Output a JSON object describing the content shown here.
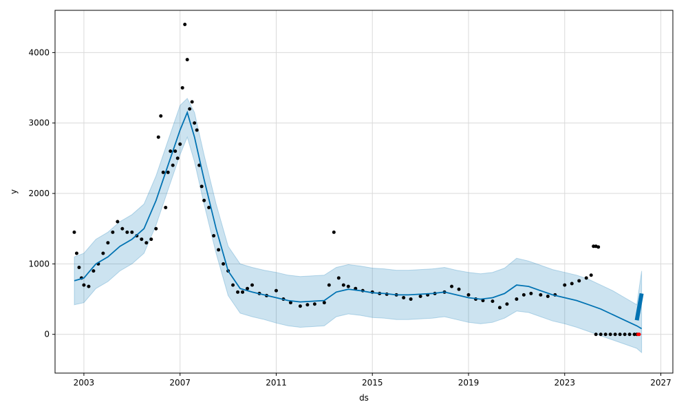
{
  "chart_data": {
    "type": "line",
    "title": "",
    "xlabel": "ds",
    "ylabel": "y",
    "xlim": [
      2001.8,
      2027.5
    ],
    "ylim": [
      -550,
      4600
    ],
    "x_ticks": [
      2003,
      2007,
      2011,
      2015,
      2019,
      2023,
      2027
    ],
    "x_tick_labels": [
      "2003",
      "2007",
      "2011",
      "2015",
      "2019",
      "2023",
      "2027"
    ],
    "y_ticks": [
      0,
      1000,
      2000,
      3000,
      4000
    ],
    "y_tick_labels": [
      "0",
      "1000",
      "2000",
      "3000",
      "4000"
    ],
    "grid": true,
    "legend": "none",
    "colors": {
      "observed": "#000000",
      "forecast": "#0072B2",
      "interval": "#0072B2",
      "highlight": "#ff0000",
      "grid": "#d9d9d9"
    },
    "series": [
      {
        "role": "forecast",
        "x": [
          2002.6,
          2003.0,
          2003.5,
          2004.0,
          2004.5,
          2005.0,
          2005.5,
          2006.0,
          2006.5,
          2007.0,
          2007.3,
          2007.6,
          2008.0,
          2008.5,
          2009.0,
          2009.5,
          2010.0,
          2010.5,
          2011.0,
          2011.5,
          2012.0,
          2012.5,
          2013.0,
          2013.5,
          2014.0,
          2014.5,
          2015.0,
          2015.5,
          2016.0,
          2016.5,
          2017.0,
          2017.5,
          2018.0,
          2018.5,
          2019.0,
          2019.5,
          2020.0,
          2020.5,
          2021.0,
          2021.5,
          2022.0,
          2022.5,
          2023.0,
          2023.5,
          2024.0,
          2024.5,
          2025.0,
          2025.5,
          2026.0,
          2026.2
        ],
        "y": [
          760,
          800,
          1000,
          1100,
          1250,
          1350,
          1500,
          1900,
          2400,
          2900,
          3150,
          2800,
          2200,
          1500,
          900,
          650,
          600,
          560,
          520,
          480,
          460,
          470,
          480,
          600,
          640,
          620,
          590,
          580,
          560,
          560,
          570,
          580,
          600,
          560,
          520,
          500,
          520,
          580,
          700,
          680,
          620,
          560,
          520,
          480,
          420,
          360,
          280,
          200,
          120,
          80
        ]
      },
      {
        "role": "interval_upper",
        "x": [
          2002.6,
          2003.0,
          2003.5,
          2004.0,
          2004.5,
          2005.0,
          2005.5,
          2006.0,
          2006.5,
          2007.0,
          2007.3,
          2007.6,
          2008.0,
          2008.5,
          2009.0,
          2009.5,
          2010.0,
          2010.5,
          2011.0,
          2011.5,
          2012.0,
          2012.5,
          2013.0,
          2013.5,
          2014.0,
          2014.5,
          2015.0,
          2015.5,
          2016.0,
          2016.5,
          2017.0,
          2017.5,
          2018.0,
          2018.5,
          2019.0,
          2019.5,
          2020.0,
          2020.5,
          2021.0,
          2021.5,
          2022.0,
          2022.5,
          2023.0,
          2023.5,
          2024.0,
          2024.5,
          2025.0,
          2025.5,
          2026.0,
          2026.2
        ],
        "y": [
          1100,
          1150,
          1350,
          1450,
          1600,
          1700,
          1850,
          2250,
          2750,
          3250,
          3350,
          3150,
          2550,
          1850,
          1250,
          1000,
          950,
          910,
          880,
          840,
          820,
          830,
          840,
          950,
          990,
          970,
          940,
          930,
          910,
          910,
          920,
          930,
          950,
          910,
          880,
          860,
          880,
          940,
          1080,
          1040,
          980,
          920,
          880,
          840,
          780,
          700,
          620,
          520,
          420,
          900
        ]
      },
      {
        "role": "interval_lower",
        "x": [
          2002.6,
          2003.0,
          2003.5,
          2004.0,
          2004.5,
          2005.0,
          2005.5,
          2006.0,
          2006.5,
          2007.0,
          2007.3,
          2007.6,
          2008.0,
          2008.5,
          2009.0,
          2009.5,
          2010.0,
          2010.5,
          2011.0,
          2011.5,
          2012.0,
          2012.5,
          2013.0,
          2013.5,
          2014.0,
          2014.5,
          2015.0,
          2015.5,
          2016.0,
          2016.5,
          2017.0,
          2017.5,
          2018.0,
          2018.5,
          2019.0,
          2019.5,
          2020.0,
          2020.5,
          2021.0,
          2021.5,
          2022.0,
          2022.5,
          2023.0,
          2023.5,
          2024.0,
          2024.5,
          2025.0,
          2025.5,
          2026.0,
          2026.2
        ],
        "y": [
          420,
          450,
          650,
          750,
          900,
          1000,
          1150,
          1550,
          2050,
          2550,
          2800,
          2450,
          1850,
          1150,
          550,
          300,
          250,
          210,
          160,
          120,
          100,
          110,
          120,
          250,
          290,
          270,
          240,
          230,
          210,
          210,
          220,
          230,
          250,
          210,
          170,
          150,
          170,
          230,
          330,
          310,
          250,
          190,
          150,
          100,
          40,
          -20,
          -80,
          -140,
          -200,
          -260
        ]
      },
      {
        "role": "observed",
        "x": [
          2002.6,
          2002.7,
          2002.8,
          2002.9,
          2003.0,
          2003.2,
          2003.4,
          2003.6,
          2003.8,
          2004.0,
          2004.2,
          2004.4,
          2004.6,
          2004.8,
          2005.0,
          2005.2,
          2005.4,
          2005.6,
          2005.8,
          2006.0,
          2006.1,
          2006.2,
          2006.3,
          2006.4,
          2006.5,
          2006.6,
          2006.7,
          2006.8,
          2006.9,
          2007.0,
          2007.1,
          2007.2,
          2007.3,
          2007.4,
          2007.5,
          2007.6,
          2007.7,
          2007.8,
          2007.9,
          2008.0,
          2008.2,
          2008.4,
          2008.6,
          2008.8,
          2009.0,
          2009.2,
          2009.4,
          2009.6,
          2009.8,
          2010.0,
          2010.3,
          2010.6,
          2011.0,
          2011.3,
          2011.6,
          2012.0,
          2012.3,
          2012.6,
          2013.0,
          2013.2,
          2013.4,
          2013.6,
          2013.8,
          2014.0,
          2014.3,
          2014.6,
          2015.0,
          2015.3,
          2015.6,
          2016.0,
          2016.3,
          2016.6,
          2017.0,
          2017.3,
          2017.6,
          2018.0,
          2018.3,
          2018.6,
          2019.0,
          2019.3,
          2019.6,
          2020.0,
          2020.3,
          2020.6,
          2021.0,
          2021.3,
          2021.6,
          2022.0,
          2022.3,
          2022.6,
          2023.0,
          2023.3,
          2023.6,
          2023.9,
          2024.1,
          2024.2,
          2024.3,
          2024.4
        ],
        "y": [
          1450,
          1150,
          950,
          800,
          700,
          680,
          900,
          1000,
          1150,
          1300,
          1450,
          1600,
          1500,
          1450,
          1450,
          1400,
          1350,
          1300,
          1350,
          1500,
          2800,
          3100,
          2300,
          1800,
          2300,
          2600,
          2400,
          2600,
          2500,
          2700,
          3500,
          4400,
          3900,
          3200,
          3300,
          3000,
          2900,
          2400,
          2100,
          1900,
          1800,
          1400,
          1200,
          1000,
          900,
          700,
          600,
          600,
          650,
          700,
          580,
          550,
          620,
          500,
          450,
          400,
          420,
          430,
          450,
          700,
          1450,
          800,
          700,
          680,
          650,
          620,
          600,
          580,
          570,
          560,
          520,
          500,
          540,
          560,
          580,
          600,
          680,
          640,
          560,
          500,
          480,
          470,
          380,
          430,
          500,
          560,
          580,
          560,
          540,
          560,
          700,
          720,
          760,
          800,
          840,
          1250,
          1250,
          1240
        ]
      },
      {
        "role": "observed_zero",
        "x": [
          2024.3,
          2024.5,
          2024.7,
          2024.9,
          2025.1,
          2025.3,
          2025.5,
          2025.7,
          2025.9,
          2026.0
        ],
        "y": [
          0,
          0,
          0,
          0,
          0,
          0,
          0,
          0,
          0,
          0
        ]
      },
      {
        "role": "highlight",
        "x": [
          2026.05,
          2026.1
        ],
        "y": [
          0,
          0
        ]
      },
      {
        "role": "forecast_tail",
        "x": [
          2026.0,
          2026.2
        ],
        "y": [
          200,
          580
        ]
      }
    ]
  }
}
